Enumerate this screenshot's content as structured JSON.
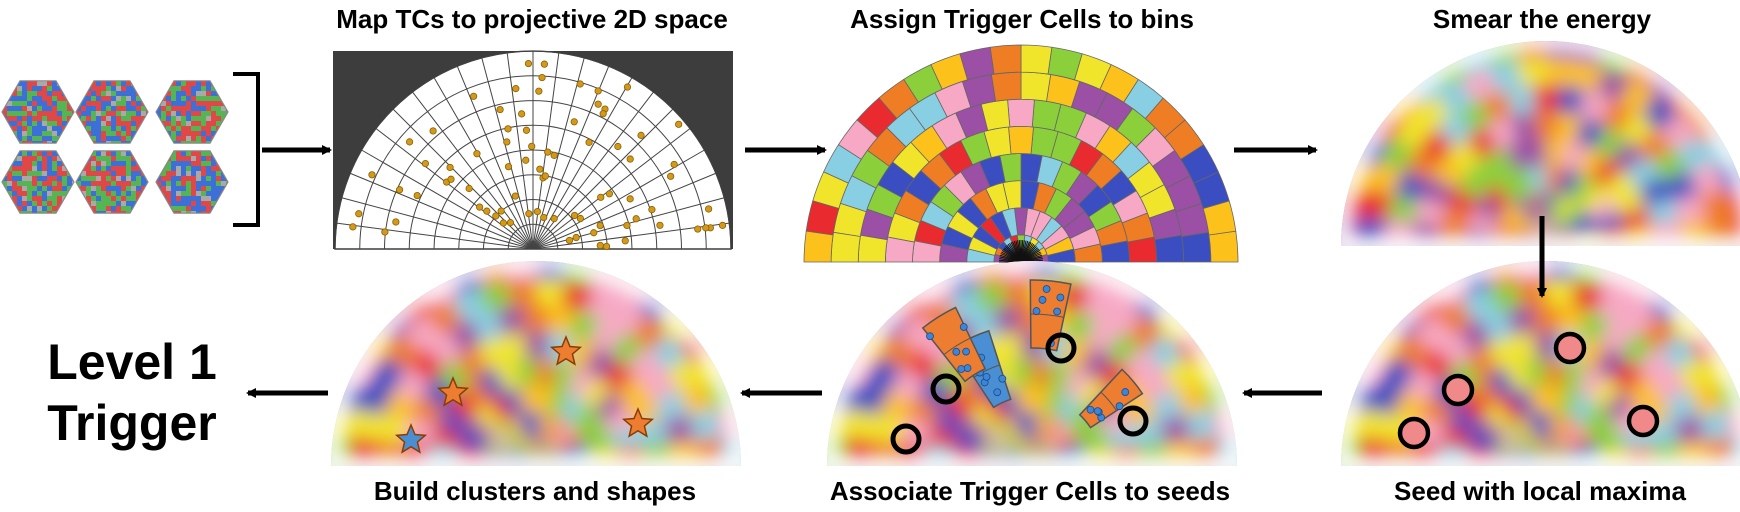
{
  "steps": [
    {
      "title": "Map TCs to projective 2D space"
    },
    {
      "title": "Assign Trigger Cells to bins"
    },
    {
      "title": "Smear the energy"
    },
    {
      "title": "Seed with local maxima"
    },
    {
      "title": "Associate Trigger Cells to seeds"
    },
    {
      "title": "Build clusters and shapes"
    }
  ],
  "output": {
    "line1": "Level 1",
    "line2": "Trigger"
  },
  "palette": [
    "#f1e52c",
    "#e92a2f",
    "#88cfe3",
    "#ef7d23",
    "#f7a8c4",
    "#9b4fa5",
    "#8bd03a",
    "#3a4ec1",
    "#fcc11a"
  ],
  "colors": {
    "projection_bg": "#3d3d3d",
    "tc_point": "#d39a1a",
    "seed_cluster": "#ed7d31",
    "blue_cluster": "#4a8fd3",
    "star_orange": "#ed7d31",
    "star_blue": "#4a8fd3",
    "seed_fill": "#f08a8a",
    "arrow": "#000000"
  },
  "hexagons": {
    "count": 6,
    "colors": [
      "#e04848",
      "#3d6fd8",
      "#55b552",
      "#a9a9a9"
    ]
  }
}
